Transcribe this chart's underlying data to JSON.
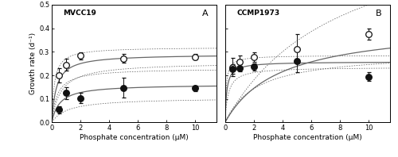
{
  "panel_A": {
    "label": "MVCC19",
    "panel_letter": "A",
    "open_circles": {
      "x": [
        0.5,
        1.0,
        2.0,
        5.0,
        10.0
      ],
      "y": [
        0.2,
        0.245,
        0.283,
        0.272,
        0.278
      ],
      "yerr": [
        0.03,
        0.025,
        0.014,
        0.018,
        0.012
      ]
    },
    "closed_circles": {
      "x": [
        0.5,
        1.0,
        2.0,
        5.0,
        10.0
      ],
      "y": [
        0.055,
        0.125,
        0.103,
        0.147,
        0.145
      ],
      "yerr": [
        0.015,
        0.025,
        0.022,
        0.042,
        0.012
      ]
    },
    "fit_open": {
      "mu_max": 0.29,
      "ks": 0.32
    },
    "fit_closed": {
      "mu_max": 0.162,
      "ks": 0.55
    },
    "ci_open_upper": {
      "mu_max": 0.32,
      "ks": 0.18
    },
    "ci_open_lower": {
      "mu_max": 0.255,
      "ks": 0.62
    },
    "ci_closed_upper": {
      "mu_max": 0.23,
      "ks": 0.38
    },
    "ci_closed_lower": {
      "mu_max": 0.105,
      "ks": 1.1
    }
  },
  "panel_B": {
    "label": "CCMP1973",
    "panel_letter": "B",
    "open_circles": {
      "x": [
        0.5,
        1.0,
        2.0,
        5.0,
        10.0
      ],
      "y": [
        0.235,
        0.258,
        0.278,
        0.312,
        0.375
      ],
      "yerr": [
        0.038,
        0.025,
        0.02,
        0.062,
        0.025
      ]
    },
    "closed_circles": {
      "x": [
        0.5,
        1.0,
        2.0,
        5.0,
        10.0
      ],
      "y": [
        0.228,
        0.232,
        0.237,
        0.262,
        0.195
      ],
      "yerr": [
        0.02,
        0.015,
        0.015,
        0.048,
        0.018
      ]
    },
    "fit_open": {
      "mu_max": 0.42,
      "ks": 3.8
    },
    "fit_closed": {
      "mu_max": 0.258,
      "ks": 0.12
    },
    "ci_open_upper": {
      "mu_max": 0.9,
      "ks": 8.0
    },
    "ci_open_lower": {
      "mu_max": 0.3,
      "ks": 2.2
    },
    "ci_closed_upper": {
      "mu_max": 0.285,
      "ks": 0.08
    },
    "ci_closed_lower": {
      "mu_max": 0.235,
      "ks": 0.22
    }
  },
  "ylim": [
    0.0,
    0.5
  ],
  "xlim": [
    0.0,
    11.5
  ],
  "xticks": [
    0,
    2,
    4,
    6,
    8,
    10
  ],
  "yticks": [
    0.0,
    0.1,
    0.2,
    0.3,
    0.4,
    0.5
  ],
  "xlabel": "Phosphate concentration (μM)",
  "ylabel": "Growth rate (d⁻¹)",
  "line_color": "#666666",
  "dot_color_closed": "#111111",
  "dot_color_open": "#ffffff",
  "dot_edgecolor": "#111111",
  "background_color": "#ffffff"
}
